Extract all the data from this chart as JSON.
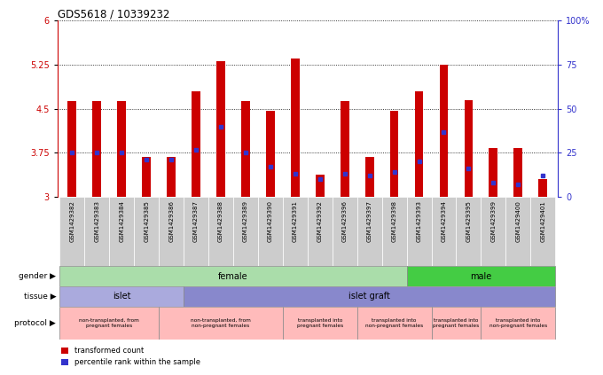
{
  "title": "GDS5618 / 10339232",
  "samples": [
    "GSM1429382",
    "GSM1429383",
    "GSM1429384",
    "GSM1429385",
    "GSM1429386",
    "GSM1429387",
    "GSM1429388",
    "GSM1429389",
    "GSM1429390",
    "GSM1429391",
    "GSM1429392",
    "GSM1429396",
    "GSM1429397",
    "GSM1429398",
    "GSM1429393",
    "GSM1429394",
    "GSM1429395",
    "GSM1429399",
    "GSM1429400",
    "GSM1429401"
  ],
  "bar_heights": [
    4.63,
    4.63,
    4.63,
    3.68,
    3.68,
    4.8,
    5.31,
    4.63,
    4.47,
    5.35,
    3.38,
    4.63,
    3.68,
    4.47,
    4.8,
    5.25,
    4.65,
    3.83,
    3.83,
    3.3
  ],
  "percentile_pct": [
    25,
    25,
    25,
    21,
    21,
    27,
    40,
    25,
    17,
    13,
    10,
    13,
    12,
    14,
    20,
    37,
    16,
    8,
    7,
    12
  ],
  "y_min": 3.0,
  "y_max": 6.0,
  "yticks_left": [
    3,
    3.75,
    4.5,
    5.25,
    6
  ],
  "ytick_labels_left": [
    "3",
    "3.75",
    "4.5",
    "5.25",
    "6"
  ],
  "yticks_right_pct": [
    0,
    25,
    50,
    75,
    100
  ],
  "ytick_labels_right": [
    "0",
    "25",
    "50",
    "75",
    "100%"
  ],
  "bar_color": "#cc0000",
  "marker_color": "#3333cc",
  "background_color": "#ffffff",
  "gender_groups": [
    {
      "label": "female",
      "start": 0,
      "end": 14,
      "color": "#aaddaa"
    },
    {
      "label": "male",
      "start": 14,
      "end": 20,
      "color": "#44cc44"
    }
  ],
  "tissue_groups": [
    {
      "label": "islet",
      "start": 0,
      "end": 5,
      "color": "#aaaadd"
    },
    {
      "label": "islet graft",
      "start": 5,
      "end": 20,
      "color": "#8888cc"
    }
  ],
  "protocol_groups": [
    {
      "label": "non-transplanted, from\npregnant females",
      "start": 0,
      "end": 4,
      "color": "#ffbbbb"
    },
    {
      "label": "non-transplanted, from\nnon-pregnant females",
      "start": 4,
      "end": 9,
      "color": "#ffbbbb"
    },
    {
      "label": "transplanted into\npregnant females",
      "start": 9,
      "end": 12,
      "color": "#ffbbbb"
    },
    {
      "label": "transplanted into\nnon-pregnant females",
      "start": 12,
      "end": 15,
      "color": "#ffbbbb"
    },
    {
      "label": "transplanted into\npregnant females",
      "start": 15,
      "end": 17,
      "color": "#ffbbbb"
    },
    {
      "label": "transplanted into\nnon-pregnant females",
      "start": 17,
      "end": 20,
      "color": "#ffbbbb"
    }
  ],
  "legend_items": [
    {
      "label": "transformed count",
      "color": "#cc0000",
      "marker": "s"
    },
    {
      "label": "percentile rank within the sample",
      "color": "#3333cc",
      "marker": "s"
    }
  ],
  "bar_width": 0.35,
  "cell_bg_color": "#cccccc",
  "left_label_color": "#333333"
}
